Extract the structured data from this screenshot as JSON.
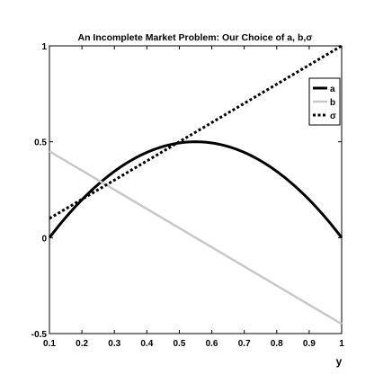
{
  "chart_data": {
    "type": "line",
    "title": "An Incomplete Market Problem: Our Choice of a, b,σ",
    "xlabel": "y",
    "ylabel": "",
    "xlim": [
      0.1,
      1
    ],
    "ylim": [
      -0.5,
      1
    ],
    "xticks": [
      "0.1",
      "0.2",
      "0.3",
      "0.4",
      "0.5",
      "0.6",
      "0.7",
      "0.8",
      "0.9",
      "1"
    ],
    "yticks": [
      "-0.5",
      "0",
      "0.5",
      "1"
    ],
    "ytick_values": [
      -0.5,
      0,
      0.5,
      1
    ],
    "xtick_values": [
      0.1,
      0.2,
      0.3,
      0.4,
      0.5,
      0.6,
      0.7,
      0.8,
      0.9,
      1
    ],
    "grid": false,
    "legend_position": "top-right",
    "series": [
      {
        "name": "a",
        "style": "solid",
        "color": "#000000",
        "x": [
          0.1,
          0.2,
          0.3,
          0.4,
          0.5,
          0.55,
          0.6,
          0.7,
          0.8,
          0.9,
          1.0
        ],
        "y": [
          0.0,
          0.198,
          0.346,
          0.444,
          0.494,
          0.5,
          0.494,
          0.444,
          0.346,
          0.198,
          0.0
        ]
      },
      {
        "name": "b",
        "style": "solid",
        "color": "#c8c8c8",
        "x": [
          0.1,
          1.0
        ],
        "y": [
          0.45,
          -0.45
        ]
      },
      {
        "name": "σ",
        "style": "dotted",
        "color": "#000000",
        "x": [
          0.1,
          1.0
        ],
        "y": [
          0.1,
          1.0
        ]
      }
    ]
  }
}
